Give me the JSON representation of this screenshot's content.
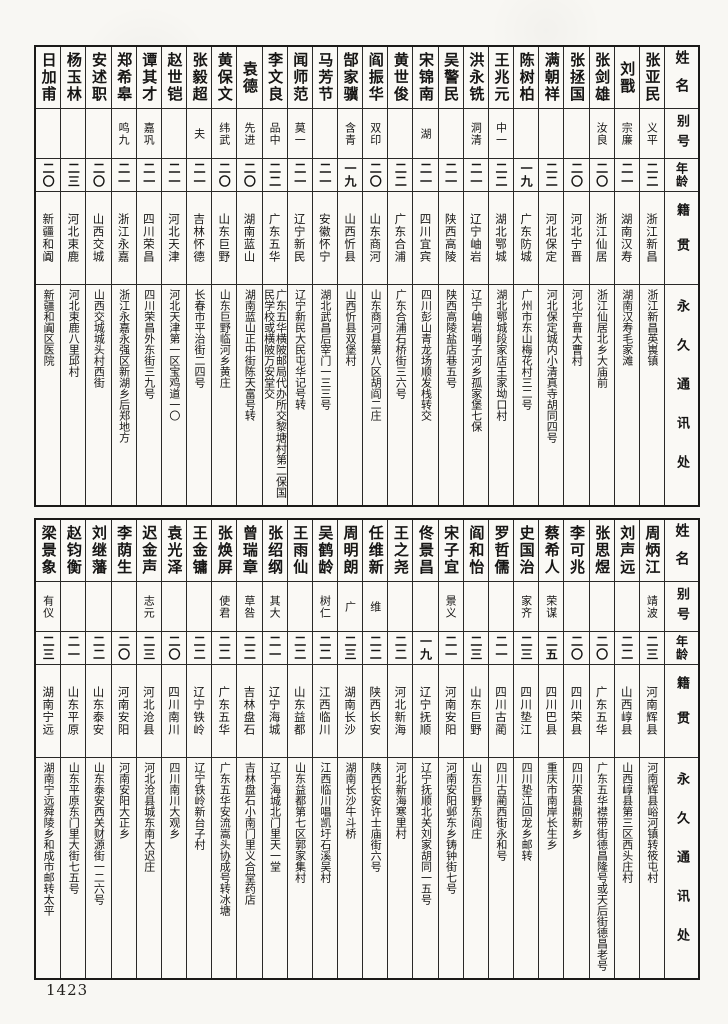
{
  "page": {
    "number": "1423"
  },
  "headers": {
    "name": "姓名",
    "alias": "别号",
    "age": "年龄",
    "origin": "籍贯",
    "address": "永久通讯处"
  },
  "tables": [
    {
      "people": [
        {
          "name": "张亚民",
          "alias": "义平",
          "age": "二二",
          "origin": "浙江新昌",
          "address": "浙江新昌英嵔镇"
        },
        {
          "name": "刘戬",
          "alias": "宗廉",
          "age": "二一",
          "origin": "湖南汉寿",
          "address": "湖南汉寿毛家滩"
        },
        {
          "name": "张剑雄",
          "alias": "汝良",
          "age": "二〇",
          "origin": "浙江仙居",
          "address": "浙江仙居北乡大庙前"
        },
        {
          "name": "张拯国",
          "alias": "",
          "age": "二〇",
          "origin": "河北宁晋",
          "address": "河北宁晋大曹村"
        },
        {
          "name": "满朝祥",
          "alias": "",
          "age": "二二",
          "origin": "河北保定",
          "address": "河北保定城内小清真寺胡同四号"
        },
        {
          "name": "陈树柏",
          "alias": "",
          "age": "一九",
          "origin": "广东防城",
          "address": "广州市东山梅花村三二号"
        },
        {
          "name": "王兆元",
          "alias": "中一",
          "age": "二二",
          "origin": "湖北鄂城",
          "address": "湖北鄂城段家店王家坳口村"
        },
        {
          "name": "洪永铣",
          "alias": "洞清",
          "age": "二一",
          "origin": "辽宁岫岩",
          "address": "辽宁岫岩哨子河乡孤家堡七保"
        },
        {
          "name": "吴警民",
          "alias": "",
          "age": "二一",
          "origin": "陕西高陵",
          "address": "陕西高陵盐店巷五号"
        },
        {
          "name": "宋锦南",
          "alias": "湖",
          "age": "二一",
          "origin": "四川宜宾",
          "address": "四川彭山青龙场顺发栈转交"
        },
        {
          "name": "黄世俊",
          "alias": "",
          "age": "二二",
          "origin": "广东合浦",
          "address": "广东合浦石桥街三六号"
        },
        {
          "name": "阎振华",
          "alias": "双印",
          "age": "二〇",
          "origin": "山东商河",
          "address": "山东商河县第八区胡阎二庄"
        },
        {
          "name": "郜家骥",
          "alias": "含青",
          "age": "一九",
          "origin": "山西忻县",
          "address": "山西忻县双堡村"
        },
        {
          "name": "马芳节",
          "alias": "",
          "age": "二一",
          "origin": "安徽怀宁",
          "address": "湖北武昌后宰门一三三号"
        },
        {
          "name": "闻师范",
          "alias": "莫一",
          "age": "二一",
          "origin": "辽宁新民",
          "address": "辽宁新民大民屯华记号转"
        },
        {
          "name": "李文良",
          "alias": "品中",
          "age": "二二",
          "origin": "广东五华",
          "address": "广东五华横陂邮局代办所交黎塘村第二保国民学校或横陂万安堂交"
        },
        {
          "name": "袁德",
          "alias": "先进",
          "age": "二〇",
          "origin": "湖南蓝山",
          "address": "湖南蓝山正中街陈天富号转"
        },
        {
          "name": "黄保文",
          "alias": "纬武",
          "age": "二〇",
          "origin": "山东巨野",
          "address": "山东巨野临河乡黄庄"
        },
        {
          "name": "张毅超",
          "alias": "夫",
          "age": "二一",
          "origin": "吉林怀德",
          "address": "长春市平治街二四号"
        },
        {
          "name": "赵世铠",
          "alias": "",
          "age": "二一",
          "origin": "河北天津",
          "address": "河北天津第一区宝鸡道一〇"
        },
        {
          "name": "谭其才",
          "alias": "嘉巩",
          "age": "二一",
          "origin": "四川荣昌",
          "address": "四川荣昌外东街三九号"
        },
        {
          "name": "郑希皋",
          "alias": "鸣九",
          "age": "二一",
          "origin": "浙江永嘉",
          "address": "浙江永嘉永强区新湖乡后郑地方"
        },
        {
          "name": "安述职",
          "alias": "",
          "age": "二〇",
          "origin": "山西交城",
          "address": "山西交城城头村西街"
        },
        {
          "name": "杨玉林",
          "alias": "",
          "age": "二三",
          "origin": "河北束鹿",
          "address": "河北束鹿八里邱村"
        },
        {
          "name": "日加甫",
          "alias": "",
          "age": "二〇",
          "origin": "新疆和阗",
          "address": "新疆和阗区医院"
        }
      ]
    },
    {
      "people": [
        {
          "name": "周炳江",
          "alias": "靖波",
          "age": "二三",
          "origin": "河南辉县",
          "address": "河南辉县峪河镇转筱屯村"
        },
        {
          "name": "刘声远",
          "alias": "",
          "age": "二二",
          "origin": "山西崞县",
          "address": "山西崞县第三区西头庄村"
        },
        {
          "name": "张思煜",
          "alias": "",
          "age": "二〇",
          "origin": "广东五华",
          "address": "广东五华襟带街德昌隆号或天后街德昌老号"
        },
        {
          "name": "李可兆",
          "alias": "",
          "age": "二〇",
          "origin": "四川荣县",
          "address": "四川荣县鼎新乡"
        },
        {
          "name": "蔡希人",
          "alias": "荣谋",
          "age": "二五",
          "origin": "四川巴县",
          "address": "重庆市南岸长生乡"
        },
        {
          "name": "史国治",
          "alias": "家齐",
          "age": "二三",
          "origin": "四川垫江",
          "address": "四川垫江回龙乡邮转"
        },
        {
          "name": "罗哲儒",
          "alias": "",
          "age": "二一",
          "origin": "四川古蔺",
          "address": "四川古蔺西街永和号"
        },
        {
          "name": "阎和怡",
          "alias": "",
          "age": "二三",
          "origin": "山东巨野",
          "address": "山东巨野东阎庄"
        },
        {
          "name": "宋子宜",
          "alias": "景义",
          "age": "二一",
          "origin": "河南安阳",
          "address": "河南安阳邺东乡铸钟街七号"
        },
        {
          "name": "佟景昌",
          "alias": "",
          "age": "一九",
          "origin": "辽宁抚顺",
          "address": "辽宁抚顺北关刘家胡同一五号"
        },
        {
          "name": "王之尧",
          "alias": "",
          "age": "二二",
          "origin": "河北新海",
          "address": "河北新海寒里村"
        },
        {
          "name": "任维新",
          "alias": "维",
          "age": "二二",
          "origin": "陕西长安",
          "address": "陕西长安许士庙街六号"
        },
        {
          "name": "周明朗",
          "alias": "广",
          "age": "二三",
          "origin": "湖南长沙",
          "address": "湖南长沙牛斗桥"
        },
        {
          "name": "吴鹤龄",
          "alias": "树仁",
          "age": "二二",
          "origin": "江西临川",
          "address": "江西临川唱凯圩石溪吴村"
        },
        {
          "name": "王雨仙",
          "alias": "",
          "age": "二二",
          "origin": "山东益都",
          "address": "山东益都第七区郭家集村"
        },
        {
          "name": "张绍纲",
          "alias": "其大",
          "age": "二一",
          "origin": "辽宁海城",
          "address": "辽宁海城北门里天一堂"
        },
        {
          "name": "曾瑞章",
          "alias": "草咎",
          "age": "二二",
          "origin": "吉林盘石",
          "address": "吉林盘石小南门里义合堂药店"
        },
        {
          "name": "张焕屏",
          "alias": "使君",
          "age": "二二",
          "origin": "广东五华",
          "address": "广东五华安流嵩头协成号转冰塘"
        },
        {
          "name": "王金镛",
          "alias": "",
          "age": "二二",
          "origin": "辽宁铁岭",
          "address": "辽宁铁岭新台子村"
        },
        {
          "name": "袁光泽",
          "alias": "",
          "age": "二〇",
          "origin": "四川南川",
          "address": "四川南川大观乡"
        },
        {
          "name": "迟金声",
          "alias": "志元",
          "age": "二三",
          "origin": "河北沧县",
          "address": "河北沧县城东南大迟庄"
        },
        {
          "name": "李荫生",
          "alias": "",
          "age": "二〇",
          "origin": "河南安阳",
          "address": "河南安阳大正乡"
        },
        {
          "name": "刘继藩",
          "alias": "",
          "age": "二二",
          "origin": "山东泰安",
          "address": "山东泰安西关财源街一二六号"
        },
        {
          "name": "赵钧衡",
          "alias": "",
          "age": "二一",
          "origin": "山东平原",
          "address": "山东平原东门里大街七五号"
        },
        {
          "name": "梁景象",
          "alias": "有仪",
          "age": "二三",
          "origin": "湖南宁远",
          "address": "湖南宁远舜陵乡和成市邮转太平"
        }
      ]
    }
  ]
}
